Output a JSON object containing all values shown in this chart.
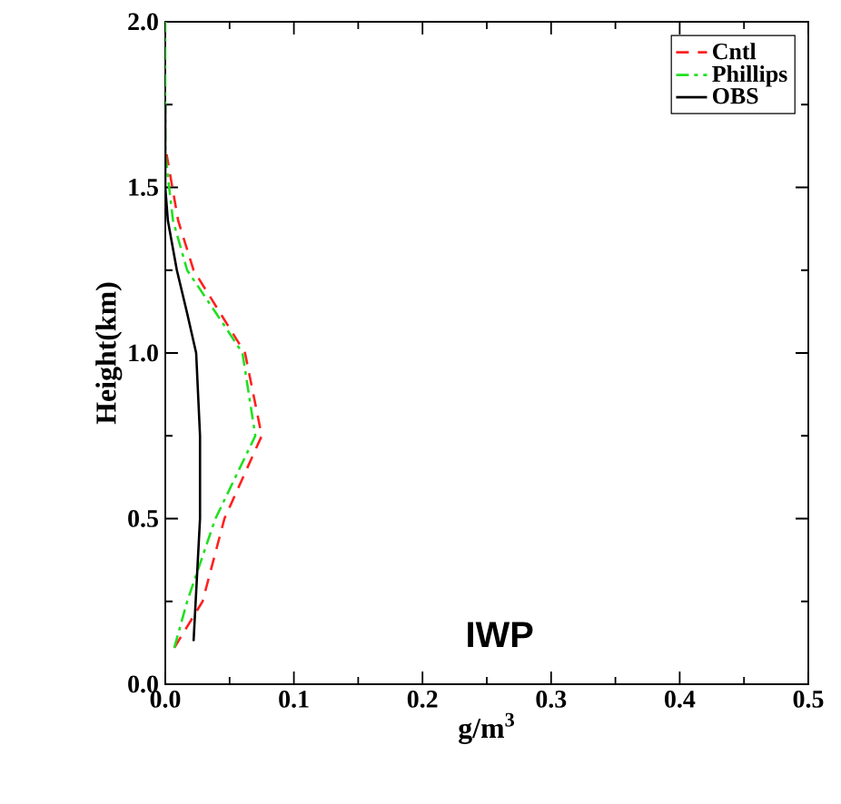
{
  "chart_data": {
    "type": "line",
    "xlabel": "g/m$^{3}$",
    "ylabel": "Height(km)",
    "annotations": [
      "IWP"
    ],
    "xlim": [
      0,
      0.5
    ],
    "xticks": [
      {
        "value": 0,
        "label": "0.0"
      },
      0.1,
      0.2,
      0.3,
      0.4,
      0.5
    ],
    "ylim": [
      0,
      2.0
    ],
    "yticks": [
      {
        "value": 0,
        "label": "0.0"
      },
      0.5,
      {
        "value": 1.0,
        "label": "1.0"
      },
      1.5,
      {
        "value": 2.0,
        "label": "2.0"
      }
    ],
    "legend": "top right",
    "marker": "none",
    "grid": false,
    "series": [
      {
        "name": "Cntl",
        "color": "#ff2020",
        "line_style": "dashed",
        "x": [
          0.007,
          0.029,
          0.046,
          0.075,
          0.062,
          0.022,
          0.01,
          0.001
        ],
        "values": [
          0.11,
          0.25,
          0.5,
          0.75,
          1.0,
          1.25,
          1.4,
          1.6
        ]
      },
      {
        "name": "Phillips",
        "color": "#20e020",
        "line_style": "dashdot",
        "x": [
          0.007,
          0.017,
          0.039,
          0.07,
          0.06,
          0.043,
          0.017,
          0.006,
          0.0,
          0.0
        ],
        "values": [
          0.11,
          0.25,
          0.5,
          0.75,
          1.0,
          1.1,
          1.25,
          1.4,
          1.6,
          2.0
        ]
      },
      {
        "name": "OBS",
        "color": "#000000",
        "line_style": "solid",
        "x": [
          0.022,
          0.027,
          0.027,
          0.024,
          0.017,
          0.009,
          0.002,
          0.0,
          0.0
        ],
        "values": [
          0.13,
          0.5,
          0.75,
          1.0,
          1.12,
          1.25,
          1.4,
          1.5,
          1.75
        ]
      }
    ]
  }
}
